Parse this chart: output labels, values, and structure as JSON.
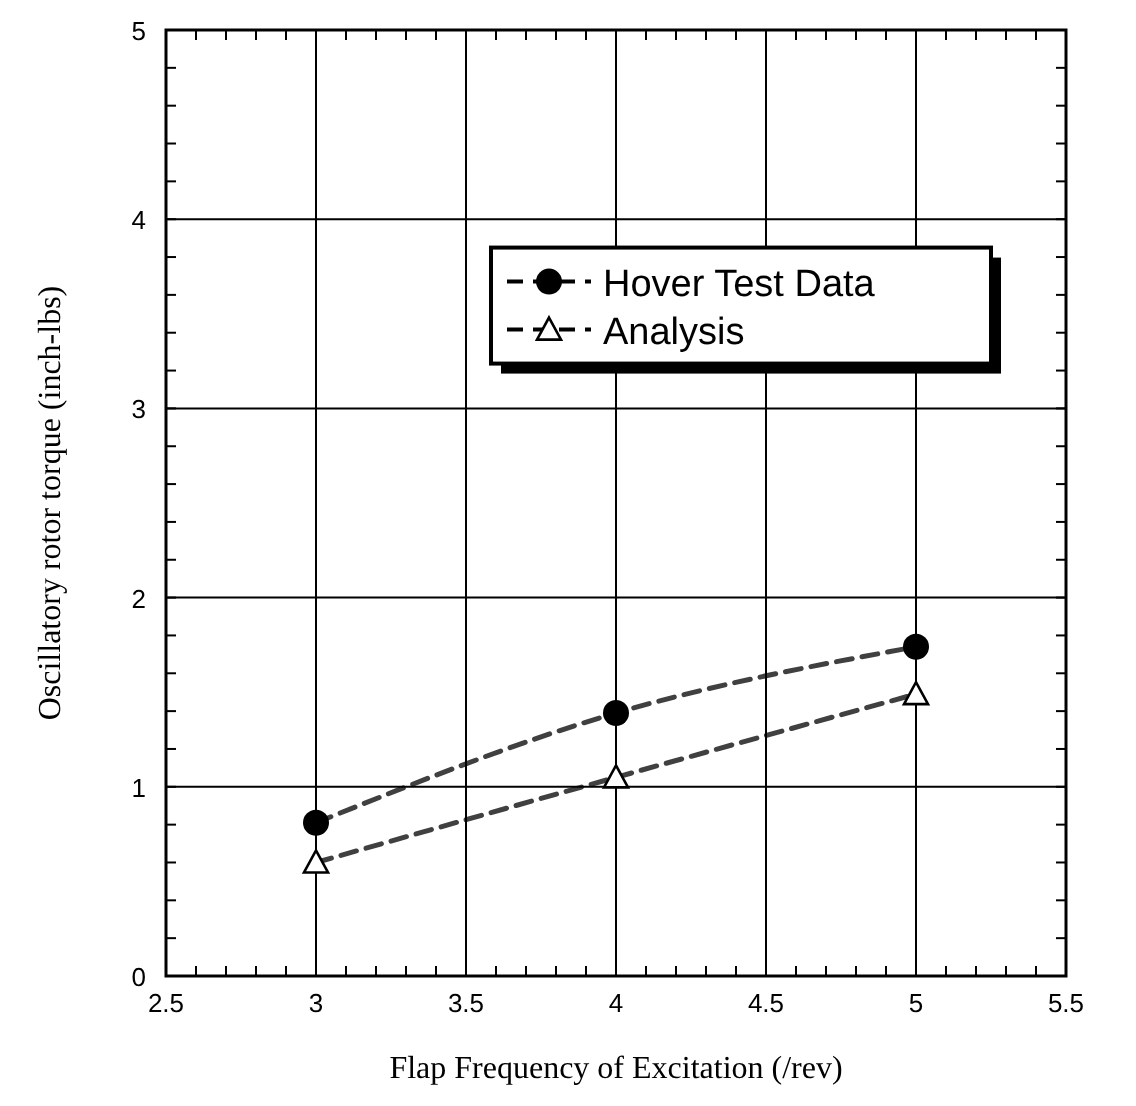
{
  "chart_data": {
    "type": "line",
    "xlabel": "Flap Frequency of Excitation (/rev)",
    "ylabel": "Oscillatory rotor torque (inch-lbs)",
    "x": [
      3,
      4,
      5
    ],
    "series": [
      {
        "name": "Hover Test Data",
        "color": "#000000",
        "values": [
          0.81,
          1.39,
          1.74
        ],
        "marker": "circle",
        "line_style": "dashed"
      },
      {
        "name": "Analysis",
        "color": "#000000",
        "values": [
          0.6,
          1.05,
          1.49
        ],
        "marker": "triangle",
        "line_style": "dashed"
      }
    ],
    "xlim": [
      2.5,
      5.5
    ],
    "xticks": [
      2.5,
      3,
      3.5,
      4,
      4.5,
      5,
      5.5
    ],
    "ylim": [
      0,
      5
    ],
    "yticks": [
      0,
      1,
      2,
      3,
      4,
      5
    ],
    "grid": true,
    "legend": "top"
  }
}
